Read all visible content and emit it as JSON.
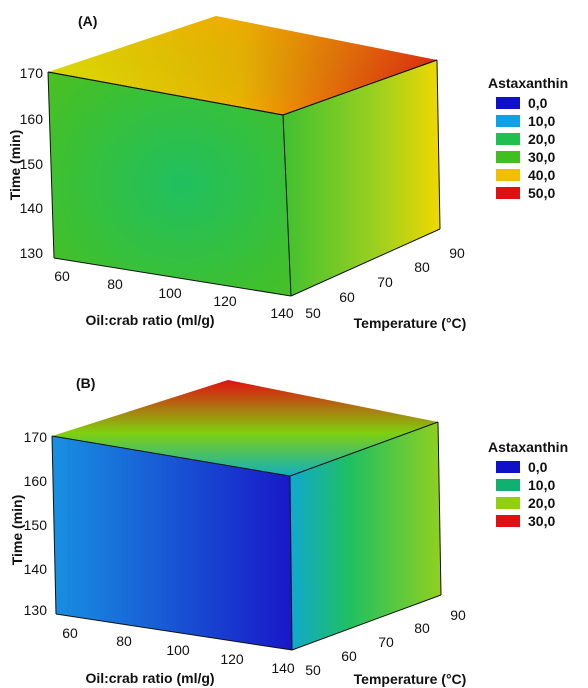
{
  "chart_data": [
    {
      "type": "heatmap",
      "subtype": "3d-cube-surface",
      "panel_label": "(A)",
      "value_name": "Astaxanthin",
      "x_axis": {
        "label": "Oil:crab ratio (ml/g)",
        "ticks": [
          "60",
          "80",
          "100",
          "120",
          "140"
        ],
        "range": [
          60,
          140
        ]
      },
      "depth_axis": {
        "label": "Temperature (°C)",
        "ticks": [
          "50",
          "60",
          "70",
          "80",
          "90"
        ],
        "range": [
          50,
          90
        ]
      },
      "y_axis": {
        "label": "Time (min)",
        "ticks": [
          "130",
          "140",
          "150",
          "160",
          "170"
        ],
        "range": [
          130,
          170
        ]
      },
      "legend": {
        "title": "Astaxanthin",
        "entries": [
          {
            "label": "0,0",
            "color": "#1010c8"
          },
          {
            "label": "10,0",
            "color": "#10a0e8"
          },
          {
            "label": "20,0",
            "color": "#20c050"
          },
          {
            "label": "30,0",
            "color": "#40c020"
          },
          {
            "label": "40,0",
            "color": "#f0c000"
          },
          {
            "label": "50,0",
            "color": "#e01010"
          }
        ]
      },
      "faces": {
        "front": {
          "min_value": 28,
          "max_value": 33
        },
        "side": {
          "low_temperature_value": 30,
          "high_temperature_value": 42
        },
        "top": {
          "low_temperature_value": 38,
          "high_temperature_value": 52
        }
      }
    },
    {
      "type": "heatmap",
      "subtype": "3d-cube-surface",
      "panel_label": "(B)",
      "value_name": "Astaxanthin",
      "x_axis": {
        "label": "Oil:crab ratio (ml/g)",
        "ticks": [
          "60",
          "80",
          "100",
          "120",
          "140"
        ],
        "range": [
          60,
          140
        ]
      },
      "depth_axis": {
        "label": "Temperature (°C)",
        "ticks": [
          "50",
          "60",
          "70",
          "80",
          "90"
        ],
        "range": [
          50,
          90
        ]
      },
      "y_axis": {
        "label": "Time (min)",
        "ticks": [
          "130",
          "140",
          "150",
          "160",
          "170"
        ],
        "range": [
          130,
          170
        ]
      },
      "legend": {
        "title": "Astaxanthin",
        "entries": [
          {
            "label": "0,0",
            "color": "#1010c8"
          },
          {
            "label": "10,0",
            "color": "#10b070"
          },
          {
            "label": "20,0",
            "color": "#90d010"
          },
          {
            "label": "30,0",
            "color": "#e01010"
          }
        ]
      },
      "faces": {
        "front": {
          "min_value": 0,
          "max_value": 5
        },
        "side": {
          "low_temperature_value": 5,
          "high_temperature_value": 20
        },
        "top": {
          "low_temperature_value": 12,
          "high_temperature_value": 31
        }
      }
    }
  ]
}
